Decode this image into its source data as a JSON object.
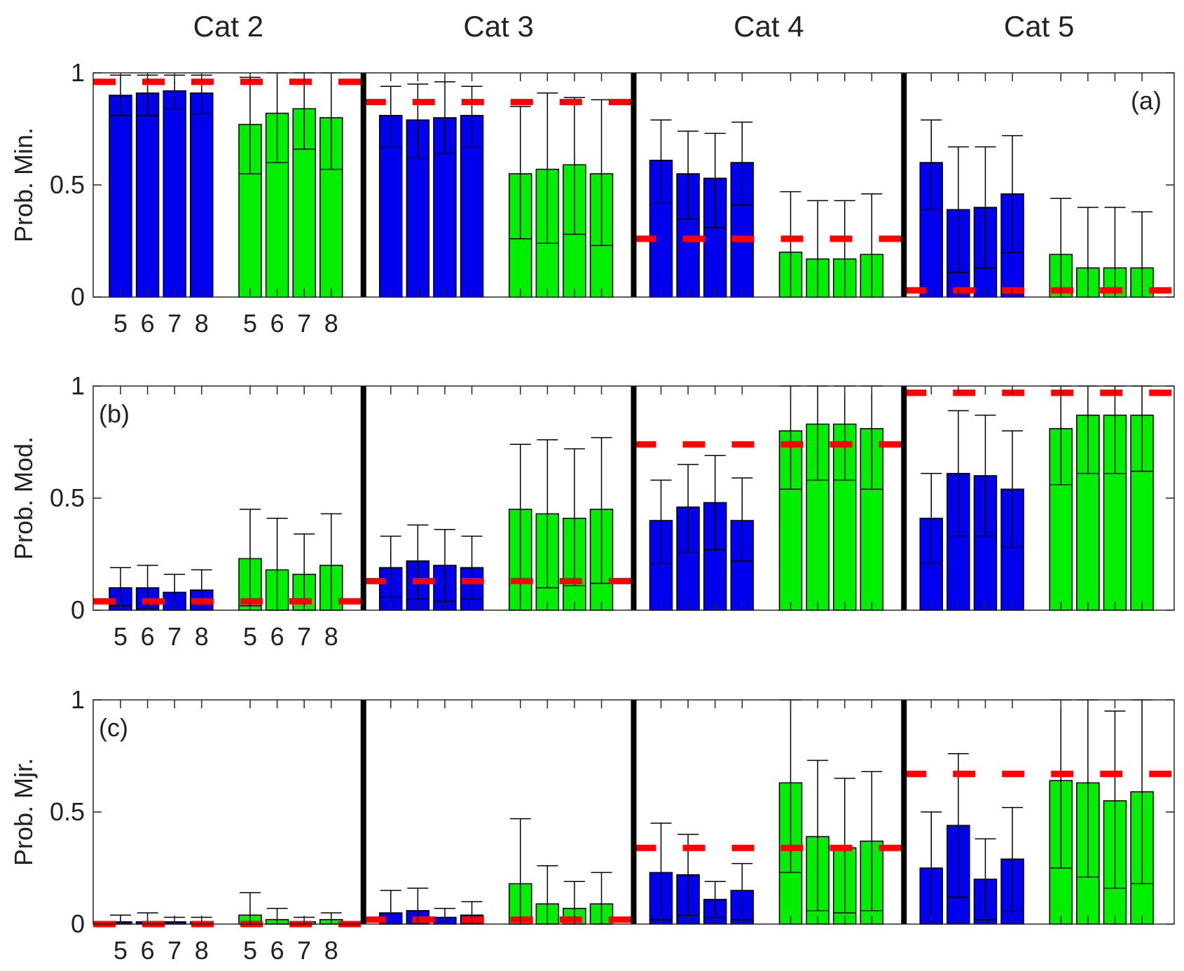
{
  "colors": {
    "blue": "#0000ee",
    "green": "#00ee00",
    "reference": "#ff0000",
    "frame": "#000000"
  },
  "chart_data": {
    "type": "bar",
    "categories": [
      "Cat 2",
      "Cat 3",
      "Cat 4",
      "Cat 5"
    ],
    "bar_labels": [
      "5",
      "6",
      "7",
      "8"
    ],
    "yticks": [
      "0",
      "0.5",
      "1"
    ],
    "ylim": [
      0,
      1
    ],
    "grid": false,
    "panels": [
      {
        "label": "(a)",
        "ylabel": "Prob. Min.",
        "reference": [
          0.96,
          0.87,
          0.26,
          0.03
        ],
        "series": [
          {
            "values": [
              [
                0.9,
                0.91,
                0.92,
                0.91
              ],
              [
                0.81,
                0.79,
                0.8,
                0.81
              ],
              [
                0.61,
                0.55,
                0.53,
                0.6
              ],
              [
                0.6,
                0.39,
                0.4,
                0.46
              ]
            ],
            "err_low": [
              [
                0.81,
                0.81,
                0.84,
                0.82
              ],
              [
                0.67,
                0.62,
                0.64,
                0.67
              ],
              [
                0.42,
                0.35,
                0.31,
                0.41
              ],
              [
                0.39,
                0.11,
                0.13,
                0.2
              ]
            ],
            "err_high": [
              [
                0.99,
                0.99,
                0.99,
                0.99
              ],
              [
                0.94,
                0.95,
                0.96,
                0.94
              ],
              [
                0.79,
                0.74,
                0.73,
                0.78
              ],
              [
                0.79,
                0.67,
                0.67,
                0.72
              ]
            ]
          },
          {
            "values": [
              [
                0.77,
                0.82,
                0.84,
                0.8
              ],
              [
                0.55,
                0.57,
                0.59,
                0.55
              ],
              [
                0.2,
                0.17,
                0.17,
                0.19
              ],
              [
                0.19,
                0.13,
                0.13,
                0.13
              ]
            ],
            "err_low": [
              [
                0.55,
                0.6,
                0.66,
                0.57
              ],
              [
                0.26,
                0.24,
                0.28,
                0.23
              ],
              [
                0,
                0,
                0,
                0
              ],
              [
                0,
                0,
                0,
                0
              ]
            ],
            "err_high": [
              [
                0.98,
                1.0,
                1.0,
                1.0
              ],
              [
                0.85,
                0.91,
                0.89,
                0.88
              ],
              [
                0.47,
                0.43,
                0.43,
                0.46
              ],
              [
                0.44,
                0.4,
                0.4,
                0.38
              ]
            ]
          }
        ]
      },
      {
        "label": "(b)",
        "ylabel": "Prob. Mod.",
        "reference": [
          0.04,
          0.13,
          0.74,
          0.97
        ],
        "series": [
          {
            "values": [
              [
                0.1,
                0.1,
                0.08,
                0.09
              ],
              [
                0.19,
                0.22,
                0.2,
                0.19
              ],
              [
                0.4,
                0.46,
                0.48,
                0.4
              ],
              [
                0.41,
                0.61,
                0.6,
                0.54
              ]
            ],
            "err_low": [
              [
                0.02,
                0.01,
                0,
                0
              ],
              [
                0.06,
                0.05,
                0.04,
                0.05
              ],
              [
                0.21,
                0.26,
                0.27,
                0.22
              ],
              [
                0.21,
                0.33,
                0.33,
                0.28
              ]
            ],
            "err_high": [
              [
                0.19,
                0.2,
                0.16,
                0.18
              ],
              [
                0.33,
                0.38,
                0.36,
                0.33
              ],
              [
                0.58,
                0.65,
                0.69,
                0.59
              ],
              [
                0.61,
                0.89,
                0.87,
                0.8
              ]
            ]
          },
          {
            "values": [
              [
                0.23,
                0.18,
                0.16,
                0.2
              ],
              [
                0.45,
                0.43,
                0.41,
                0.45
              ],
              [
                0.8,
                0.83,
                0.83,
                0.81
              ],
              [
                0.81,
                0.87,
                0.87,
                0.87
              ]
            ],
            "err_low": [
              [
                0.02,
                0,
                0,
                0
              ],
              [
                0,
                0.1,
                0.11,
                0.12
              ],
              [
                0.54,
                0.58,
                0.58,
                0.54
              ],
              [
                0.56,
                0.61,
                0.61,
                0.62
              ]
            ],
            "err_high": [
              [
                0.45,
                0.41,
                0.34,
                0.43
              ],
              [
                0.74,
                0.76,
                0.72,
                0.77
              ],
              [
                1.0,
                1.0,
                1.0,
                1.0
              ],
              [
                1.0,
                1.0,
                1.0,
                1.0
              ]
            ]
          }
        ]
      },
      {
        "label": "(c)",
        "ylabel": "Prob. Mjr.",
        "reference": [
          0.0,
          0.02,
          0.34,
          0.67
        ],
        "series": [
          {
            "values": [
              [
                0.01,
                0.01,
                0.01,
                0.01
              ],
              [
                0.05,
                0.06,
                0.03,
                0.04
              ],
              [
                0.23,
                0.22,
                0.11,
                0.15
              ],
              [
                0.25,
                0.44,
                0.2,
                0.29
              ]
            ],
            "err_low": [
              [
                0,
                0,
                0,
                0
              ],
              [
                0,
                0,
                0,
                0
              ],
              [
                0.02,
                0.04,
                0.03,
                0.02
              ],
              [
                0,
                0.12,
                0.02,
                0.06
              ]
            ],
            "err_high": [
              [
                0.04,
                0.05,
                0.03,
                0.03
              ],
              [
                0.15,
                0.16,
                0.07,
                0.1
              ],
              [
                0.45,
                0.4,
                0.19,
                0.27
              ],
              [
                0.5,
                0.76,
                0.38,
                0.52
              ]
            ]
          },
          {
            "values": [
              [
                0.04,
                0.02,
                0.01,
                0.02
              ],
              [
                0.18,
                0.09,
                0.07,
                0.09
              ],
              [
                0.63,
                0.39,
                0.34,
                0.37
              ],
              [
                0.64,
                0.63,
                0.55,
                0.59
              ]
            ],
            "err_low": [
              [
                0,
                0,
                0,
                0
              ],
              [
                0,
                0,
                0,
                0
              ],
              [
                0.23,
                0.06,
                0.05,
                0.06
              ],
              [
                0.25,
                0.21,
                0.16,
                0.18
              ]
            ],
            "err_high": [
              [
                0.14,
                0.07,
                0.03,
                0.05
              ],
              [
                0.47,
                0.26,
                0.19,
                0.23
              ],
              [
                1.0,
                0.73,
                0.65,
                0.68
              ],
              [
                1.0,
                1.0,
                0.95,
                1.0
              ]
            ]
          }
        ]
      }
    ]
  }
}
